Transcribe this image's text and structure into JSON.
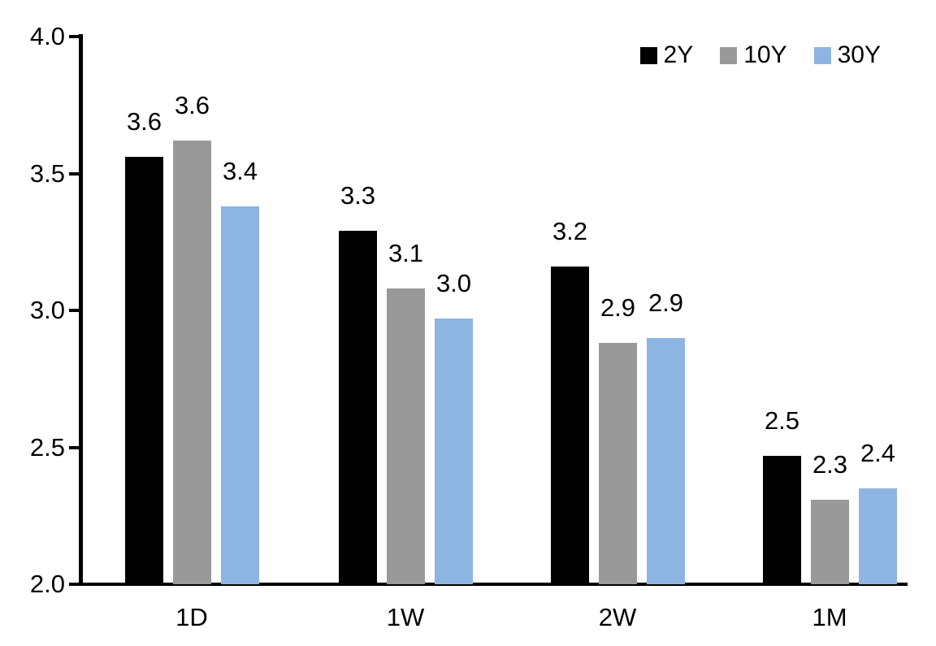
{
  "chart_data": {
    "type": "bar",
    "title": "",
    "xlabel": "",
    "ylabel": "",
    "categories": [
      "1D",
      "1W",
      "2W",
      "1M"
    ],
    "series": [
      {
        "name": "2Y",
        "color": "#000000",
        "values": [
          3.6,
          3.3,
          3.2,
          2.5
        ],
        "labels": [
          "3.6",
          "3.3",
          "3.2",
          "2.5"
        ],
        "values_precise": [
          3.56,
          3.29,
          3.16,
          2.47
        ]
      },
      {
        "name": "10Y",
        "color": "#999999",
        "values": [
          3.6,
          3.1,
          2.9,
          2.3
        ],
        "labels": [
          "3.6",
          "3.1",
          "2.9",
          "2.3"
        ],
        "values_precise": [
          3.62,
          3.08,
          2.88,
          2.31
        ]
      },
      {
        "name": "30Y",
        "color": "#8eb4e2",
        "values": [
          3.4,
          3.0,
          2.9,
          2.4
        ],
        "labels": [
          "3.4",
          "3.0",
          "2.9",
          "2.4"
        ],
        "values_precise": [
          3.38,
          2.97,
          2.9,
          2.35
        ]
      }
    ],
    "ylim": [
      2.0,
      4.0
    ],
    "yticks": [
      "4.0",
      "3.5",
      "3.0",
      "2.5",
      "2.0"
    ],
    "ytick_values": [
      4.0,
      3.5,
      3.0,
      2.5,
      2.0
    ],
    "grid": false,
    "data_labels": true,
    "legend_position": "top-right",
    "legend": [
      "2Y",
      "10Y",
      "30Y"
    ],
    "axis_color": "#000000",
    "text_color": "#000000",
    "background_color": "#ffffff"
  }
}
